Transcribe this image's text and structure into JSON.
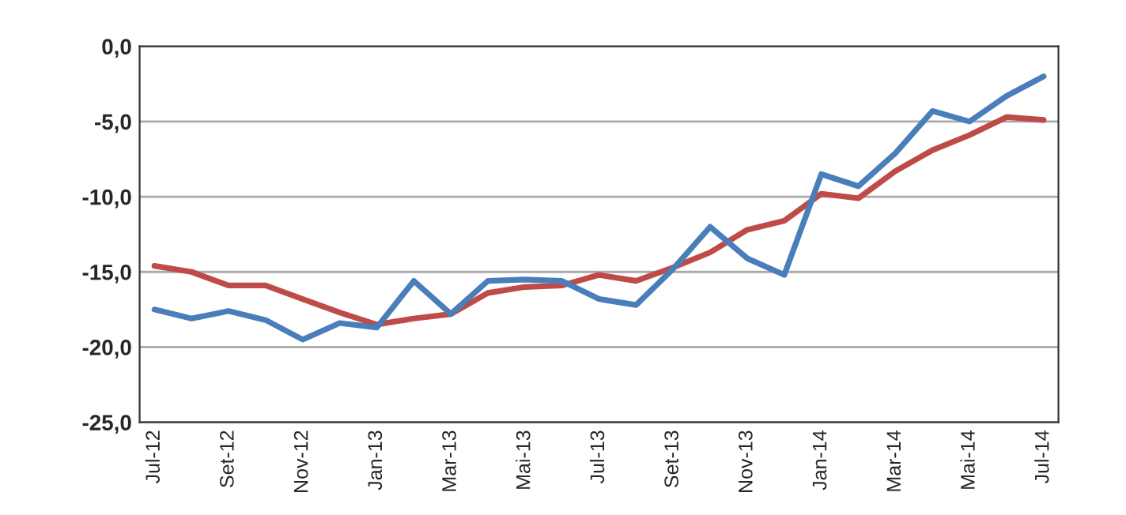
{
  "chart_data": {
    "type": "line",
    "categories": [
      "Jul-12",
      null,
      "Set-12",
      null,
      "Nov-12",
      null,
      "Jan-13",
      null,
      "Mar-13",
      null,
      "Mai-13",
      null,
      "Jul-13",
      null,
      "Set-13",
      null,
      "Nov-13",
      null,
      "Jan-14",
      null,
      "Mar-14",
      null,
      "Mai-14",
      null,
      "Jul-14"
    ],
    "series": [
      {
        "color": "#be4b48",
        "values": [
          -14.6,
          -15.0,
          -15.9,
          -15.9,
          -16.8,
          -17.7,
          -18.5,
          -18.1,
          -17.8,
          -16.4,
          -16.0,
          -15.9,
          -15.2,
          -15.6,
          -14.7,
          -13.7,
          -12.2,
          -11.6,
          -9.8,
          -10.1,
          -8.3,
          -6.9,
          -5.9,
          -4.7,
          -4.9
        ]
      },
      {
        "color": "#4a7ebb",
        "values": [
          -17.5,
          -18.1,
          -17.6,
          -18.2,
          -19.5,
          -18.4,
          -18.7,
          -15.6,
          -17.8,
          -15.6,
          -15.5,
          -15.6,
          -16.8,
          -17.2,
          -14.8,
          -12.0,
          -14.1,
          -15.2,
          -8.5,
          -9.3,
          -7.1,
          -4.3,
          -5.0,
          -3.3,
          -2.0
        ]
      }
    ],
    "ylim": [
      -25,
      0
    ],
    "yticks": [
      {
        "value": -25,
        "label": "-25,0"
      },
      {
        "value": -20,
        "label": "-20,0"
      },
      {
        "value": -15,
        "label": "-15,0"
      },
      {
        "value": -10,
        "label": "-10,0"
      },
      {
        "value": -5,
        "label": "-5,0"
      },
      {
        "value": 0,
        "label": "0,0"
      }
    ],
    "grid": "y",
    "marker": "none",
    "line_style": "solid"
  }
}
